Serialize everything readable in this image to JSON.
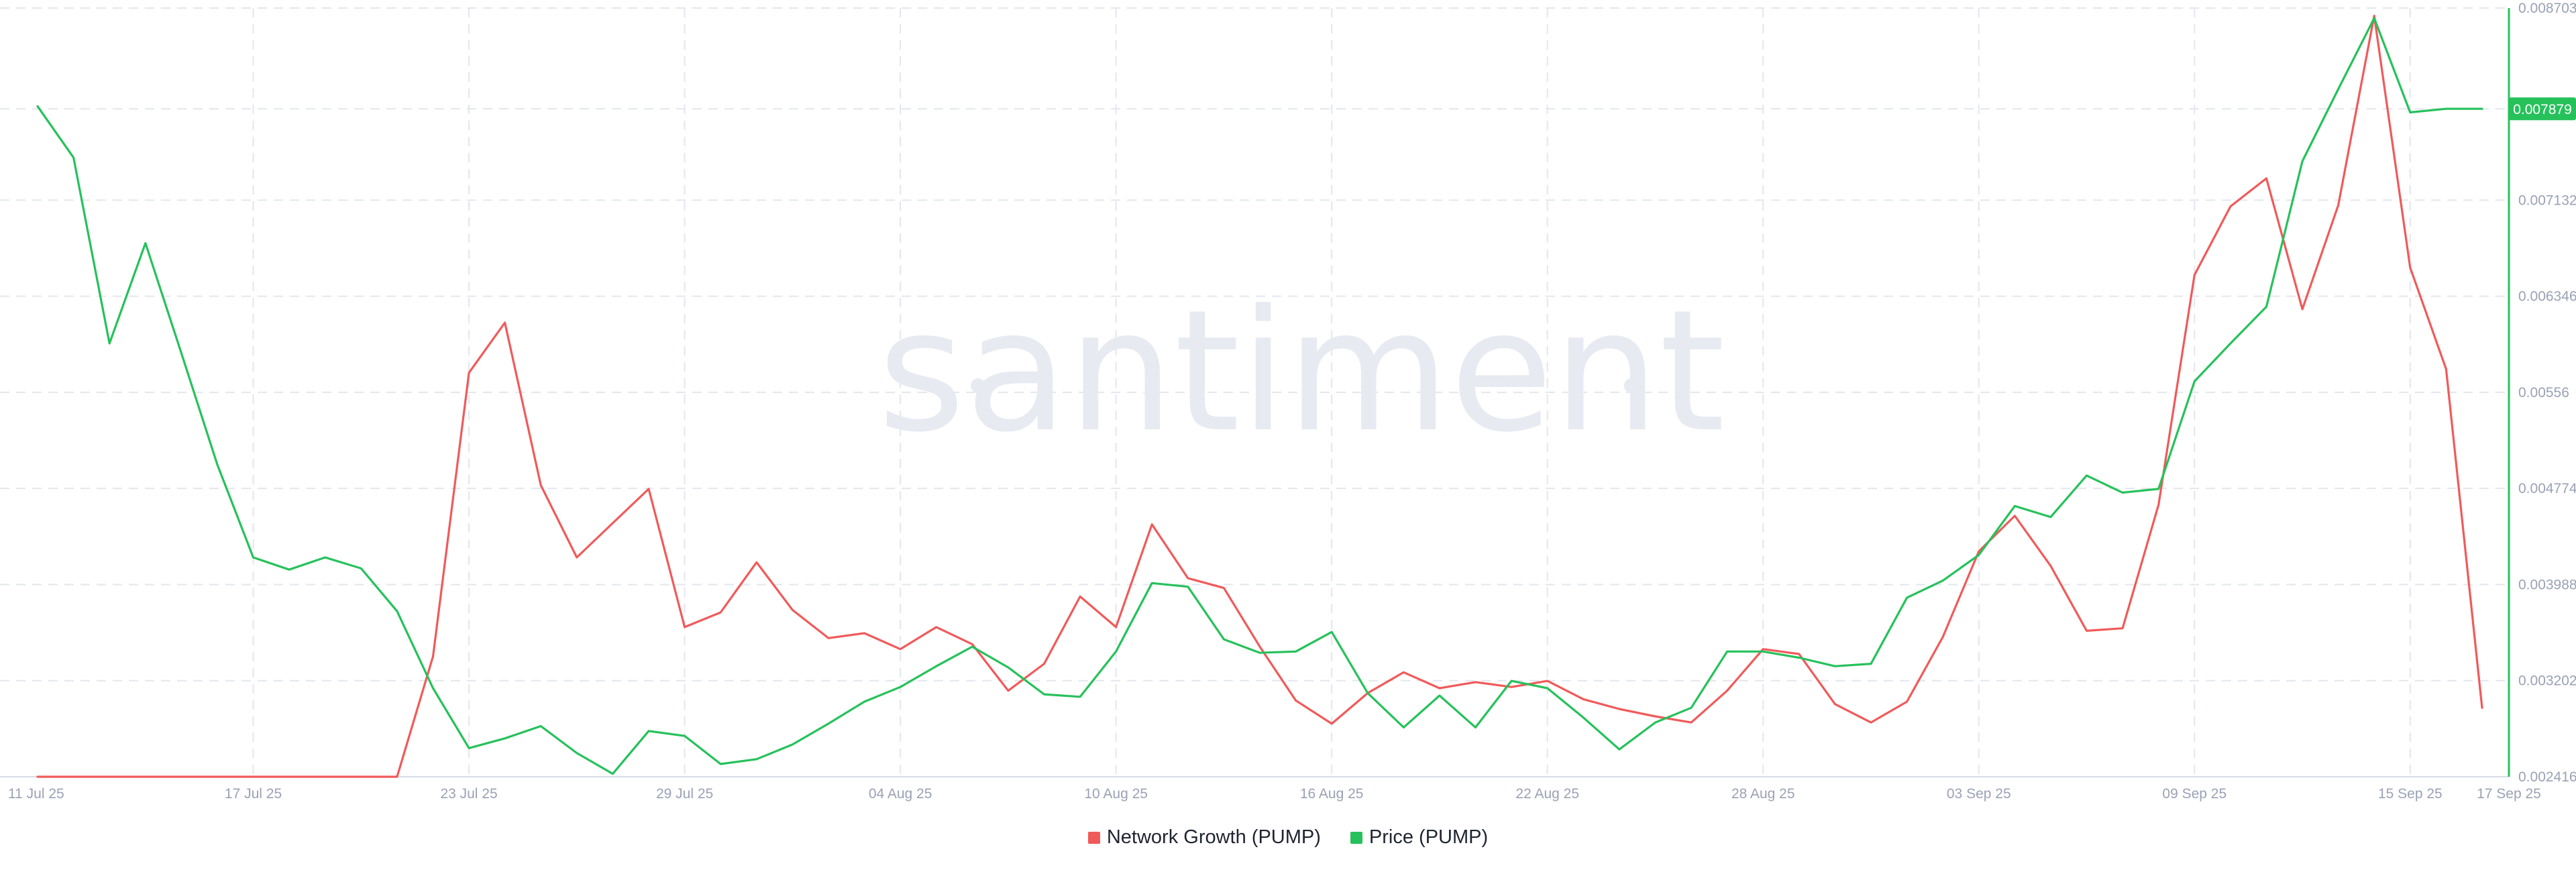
{
  "watermark": "santiment",
  "legend": [
    {
      "label": "Network Growth (PUMP)",
      "color": "#f05a5a"
    },
    {
      "label": "Price (PUMP)",
      "color": "#26c15b"
    }
  ],
  "chart_data": {
    "type": "line",
    "title": "",
    "xlabel": "",
    "ylabel": "",
    "x_tick_labels": [
      "11 Jul 25",
      "17 Jul 25",
      "23 Jul 25",
      "29 Jul 25",
      "04 Aug 25",
      "10 Aug 25",
      "16 Aug 25",
      "22 Aug 25",
      "28 Aug 25",
      "03 Sep 25",
      "09 Sep 25",
      "15 Sep 25",
      "17 Sep 25"
    ],
    "y_tick_labels": [
      "0.008703",
      "0.007879",
      "0.007132",
      "0.006346",
      "0.00556",
      "0.004774",
      "0.003988",
      "0.003202",
      "0.002416"
    ],
    "ylim": [
      0.002416,
      0.008703
    ],
    "price_last_value": "0.007879",
    "grid": true,
    "legend_position": "bottom-center",
    "x_days": [
      "2025-07-11",
      "2025-07-12",
      "2025-07-13",
      "2025-07-14",
      "2025-07-15",
      "2025-07-16",
      "2025-07-17",
      "2025-07-18",
      "2025-07-19",
      "2025-07-20",
      "2025-07-21",
      "2025-07-22",
      "2025-07-23",
      "2025-07-24",
      "2025-07-25",
      "2025-07-26",
      "2025-07-27",
      "2025-07-28",
      "2025-07-29",
      "2025-07-30",
      "2025-07-31",
      "2025-08-01",
      "2025-08-02",
      "2025-08-03",
      "2025-08-04",
      "2025-08-05",
      "2025-08-06",
      "2025-08-07",
      "2025-08-08",
      "2025-08-09",
      "2025-08-10",
      "2025-08-11",
      "2025-08-12",
      "2025-08-13",
      "2025-08-14",
      "2025-08-15",
      "2025-08-16",
      "2025-08-17",
      "2025-08-18",
      "2025-08-19",
      "2025-08-20",
      "2025-08-21",
      "2025-08-22",
      "2025-08-23",
      "2025-08-24",
      "2025-08-25",
      "2025-08-26",
      "2025-08-27",
      "2025-08-28",
      "2025-08-29",
      "2025-08-30",
      "2025-08-31",
      "2025-09-01",
      "2025-09-02",
      "2025-09-03",
      "2025-09-04",
      "2025-09-05",
      "2025-09-06",
      "2025-09-07",
      "2025-09-08",
      "2025-09-09",
      "2025-09-10",
      "2025-09-11",
      "2025-09-12",
      "2025-09-13",
      "2025-09-14",
      "2025-09-15",
      "2025-09-16",
      "2025-09-17"
    ],
    "series": [
      {
        "name": "Network Growth (PUMP)",
        "color": "#f05a5a",
        "values": [
          0.002416,
          0.002416,
          0.002416,
          0.002416,
          0.002416,
          0.002416,
          0.002416,
          0.002416,
          0.002416,
          0.002416,
          0.002416,
          0.0034,
          0.00572,
          0.00613,
          0.0048,
          0.00421,
          0.00449,
          0.00477,
          0.00364,
          0.00376,
          0.00417,
          0.00378,
          0.00355,
          0.00359,
          0.00346,
          0.00364,
          0.0035,
          0.00312,
          0.00334,
          0.00389,
          0.00364,
          0.00448,
          0.00404,
          0.00396,
          0.00348,
          0.00304,
          0.00285,
          0.0031,
          0.00327,
          0.00314,
          0.00319,
          0.00315,
          0.0032,
          0.00305,
          0.00297,
          0.00291,
          0.00286,
          0.00312,
          0.00346,
          0.00342,
          0.00301,
          0.00286,
          0.00303,
          0.00356,
          0.00426,
          0.00455,
          0.00414,
          0.00361,
          0.00363,
          0.00464,
          0.00652,
          0.00708,
          0.00731,
          0.00624,
          0.00709,
          0.00864,
          0.00658,
          0.00575,
          0.00298
        ]
      },
      {
        "name": "Price (PUMP)",
        "color": "#26c15b",
        "values": [
          0.0079,
          0.00748,
          0.00596,
          0.00678,
          0.00588,
          0.00497,
          0.00421,
          0.00411,
          0.00421,
          0.00412,
          0.00377,
          0.00314,
          0.00265,
          0.00273,
          0.00283,
          0.00261,
          0.00244,
          0.00279,
          0.00275,
          0.00252,
          0.00256,
          0.00268,
          0.00285,
          0.00303,
          0.00315,
          0.00332,
          0.00348,
          0.00331,
          0.00309,
          0.00307,
          0.00344,
          0.004,
          0.00397,
          0.00354,
          0.00343,
          0.00344,
          0.0036,
          0.0031,
          0.00282,
          0.00308,
          0.00282,
          0.0032,
          0.00314,
          0.0029,
          0.00264,
          0.00286,
          0.00298,
          0.00344,
          0.00344,
          0.00339,
          0.00332,
          0.00334,
          0.00388,
          0.00402,
          0.00423,
          0.00463,
          0.00454,
          0.00488,
          0.00474,
          0.00477,
          0.00565,
          0.00596,
          0.00626,
          0.00745,
          0.00804,
          0.00862,
          0.00785,
          0.007879,
          0.007879
        ]
      }
    ]
  }
}
